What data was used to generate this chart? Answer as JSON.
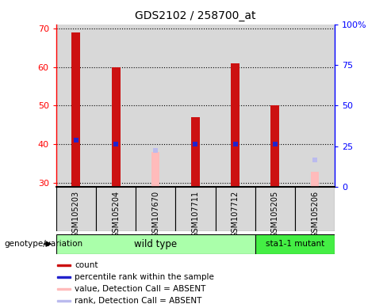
{
  "title": "GDS2102 / 258700_at",
  "sample_labels": [
    "GSM105203",
    "GSM105204",
    "GSM107670",
    "GSM107711",
    "GSM107712",
    "GSM105205",
    "GSM105206"
  ],
  "count_values": [
    69,
    60,
    null,
    47,
    61,
    50,
    null
  ],
  "percentile_rank": [
    41,
    40,
    null,
    40,
    40,
    40,
    null
  ],
  "absent_value": [
    null,
    null,
    38,
    null,
    null,
    null,
    33
  ],
  "absent_rank": [
    null,
    null,
    38.5,
    null,
    null,
    null,
    36
  ],
  "ylim_left": [
    29,
    71
  ],
  "ylim_right": [
    0,
    100
  ],
  "yticks_left": [
    30,
    40,
    50,
    60,
    70
  ],
  "yticks_right": [
    0,
    25,
    50,
    75,
    100
  ],
  "ytick_right_labels": [
    "0",
    "25",
    "50",
    "75",
    "100%"
  ],
  "bar_width": 0.22,
  "count_color": "#cc1111",
  "percentile_color": "#2222cc",
  "absent_value_color": "#ffbbbb",
  "absent_rank_color": "#bbbbee",
  "baseline": 29,
  "wt_color": "#aaffaa",
  "mut_color": "#44ee44",
  "wt_label": "wild type",
  "mut_label": "sta1-1 mutant",
  "genotype_label": "genotype/variation",
  "bg_col_color": "#d8d8d8",
  "legend_items": [
    {
      "label": "count",
      "color": "#cc1111"
    },
    {
      "label": "percentile rank within the sample",
      "color": "#2222cc"
    },
    {
      "label": "value, Detection Call = ABSENT",
      "color": "#ffbbbb"
    },
    {
      "label": "rank, Detection Call = ABSENT",
      "color": "#bbbbee"
    }
  ]
}
